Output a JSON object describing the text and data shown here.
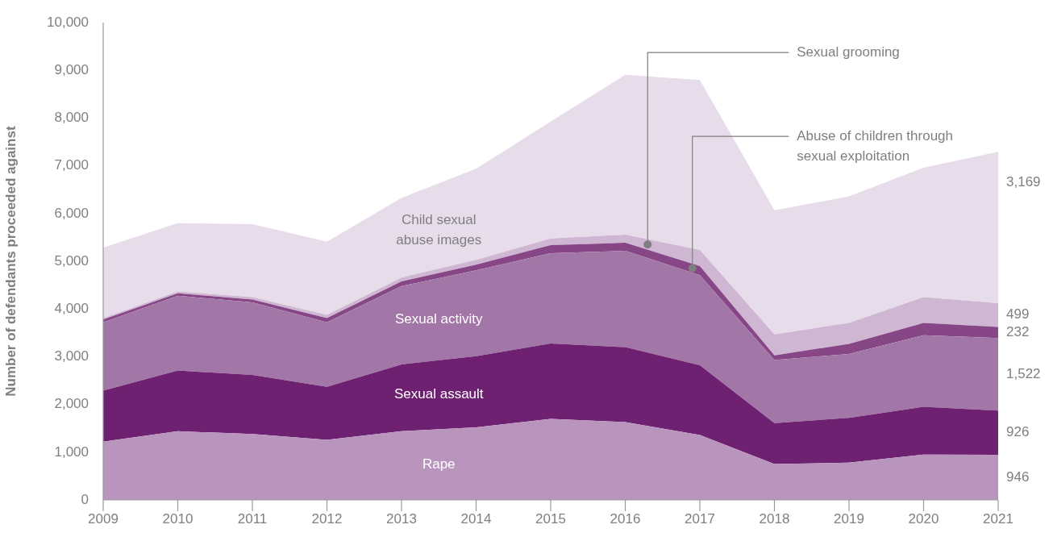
{
  "chart_data": {
    "type": "area",
    "stacked": true,
    "ylabel": "Number of defendants proceeded against",
    "categories": [
      "2009",
      "2010",
      "2011",
      "2012",
      "2013",
      "2014",
      "2015",
      "2016",
      "2017",
      "2018",
      "2019",
      "2020",
      "2021"
    ],
    "series": [
      {
        "name": "Rape",
        "color": "#b994bd",
        "values": [
          1220,
          1440,
          1380,
          1260,
          1440,
          1520,
          1700,
          1630,
          1360,
          750,
          780,
          950,
          946
        ],
        "value_labels": [
          null,
          null,
          null,
          null,
          null,
          null,
          null,
          null,
          null,
          null,
          null,
          null,
          "946"
        ]
      },
      {
        "name": "Sexual assault",
        "color": "#6e2170",
        "values": [
          1070,
          1270,
          1240,
          1110,
          1400,
          1490,
          1580,
          1570,
          1460,
          860,
          940,
          1000,
          926
        ],
        "value_labels": [
          null,
          null,
          null,
          null,
          null,
          null,
          null,
          null,
          null,
          null,
          null,
          null,
          "926"
        ]
      },
      {
        "name": "Sexual activity",
        "color": "#a276a6",
        "values": [
          1430,
          1570,
          1520,
          1350,
          1640,
          1800,
          1890,
          2020,
          1890,
          1320,
          1340,
          1500,
          1522
        ],
        "value_labels": [
          null,
          null,
          null,
          null,
          null,
          null,
          null,
          null,
          null,
          null,
          null,
          null,
          "1,522"
        ]
      },
      {
        "name": "Abuse of children through sexual exploitation",
        "color": "#874686",
        "values": [
          60,
          50,
          60,
          90,
          100,
          120,
          170,
          170,
          190,
          100,
          210,
          260,
          232
        ],
        "value_labels": [
          null,
          null,
          null,
          null,
          null,
          null,
          null,
          null,
          null,
          null,
          null,
          null,
          "232"
        ]
      },
      {
        "name": "Sexual grooming",
        "color": "#cfb7d3",
        "values": [
          30,
          40,
          50,
          70,
          80,
          100,
          140,
          170,
          340,
          440,
          440,
          540,
          499
        ],
        "value_labels": [
          null,
          null,
          null,
          null,
          null,
          null,
          null,
          null,
          null,
          null,
          null,
          null,
          "499"
        ]
      },
      {
        "name": "Child sexual abuse images",
        "color": "#e7dcea",
        "values": [
          1480,
          1430,
          1530,
          1530,
          1670,
          1910,
          2450,
          3350,
          3560,
          2600,
          2650,
          2710,
          3169
        ],
        "value_labels": [
          null,
          null,
          null,
          null,
          null,
          null,
          null,
          null,
          null,
          null,
          null,
          null,
          "3,169"
        ]
      }
    ],
    "ylim": [
      0,
      10000
    ],
    "yticks": [
      0,
      {
        "value": 1000,
        "label": "1,000"
      },
      {
        "value": 2000,
        "label": "2,000"
      },
      {
        "value": 3000,
        "label": "3,000"
      },
      {
        "value": 4000,
        "label": "4,000"
      },
      {
        "value": 5000,
        "label": "5,000"
      },
      {
        "value": 6000,
        "label": "6,000"
      },
      {
        "value": 7000,
        "label": "7,000"
      },
      {
        "value": 8000,
        "label": "8,000"
      },
      {
        "value": 9000,
        "label": "9,000"
      },
      {
        "value": 10000,
        "label": "10,000"
      }
    ],
    "grid": false,
    "legend": false
  }
}
